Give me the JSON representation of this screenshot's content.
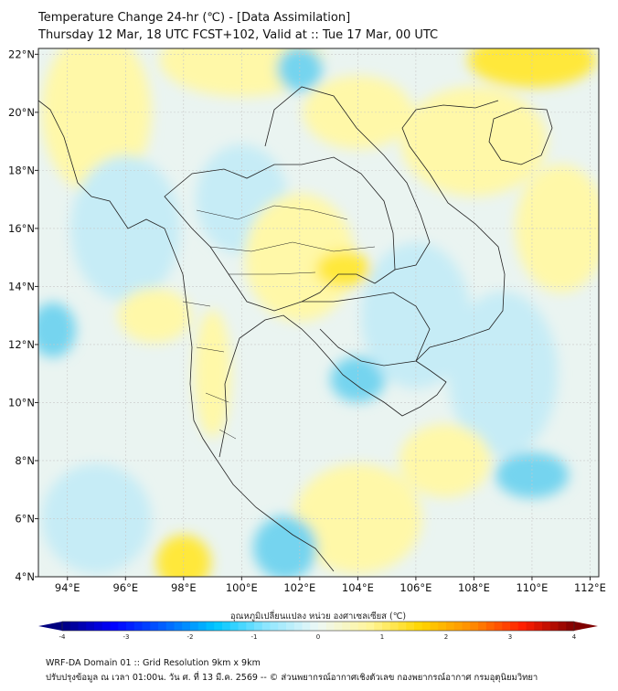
{
  "title_line1": "Temperature Change 24-hr (℃) - [Data Assimilation]",
  "title_line2": "Thursday 12 Mar, 18 UTC FCST+102, Valid at :: Tue 17 Mar, 00 UTC",
  "map": {
    "lon_range": [
      93,
      112.3
    ],
    "lat_range": [
      4,
      22.2
    ],
    "lon_ticks": [
      94,
      96,
      98,
      100,
      102,
      104,
      106,
      108,
      110,
      112
    ],
    "lon_tick_labels": [
      "94°E",
      "96°E",
      "98°E",
      "100°E",
      "102°E",
      "104°E",
      "106°E",
      "108°E",
      "110°E",
      "112°E"
    ],
    "lat_ticks": [
      4,
      6,
      8,
      10,
      12,
      14,
      16,
      18,
      20,
      22
    ],
    "lat_tick_labels": [
      "4°N",
      "6°N",
      "8°N",
      "10°N",
      "12°N",
      "14°N",
      "16°N",
      "18°N",
      "20°N",
      "22°N"
    ],
    "grid": true,
    "field_colors": {
      "background": "#eaf4f1",
      "warm_light": "#fff8a8",
      "warm": "#ffe83a",
      "cool_light": "#c6ecf6",
      "cool": "#74d4ef"
    },
    "border_color": "#222222"
  },
  "colorbar": {
    "caption": "อุณหภูมิเปลี่ยนแปลง หน่วย องศาเซลเซียส (℃)",
    "range": [
      -4,
      4
    ],
    "ticks": [
      -4,
      -3,
      -2,
      -1,
      0,
      1,
      2,
      3,
      4
    ],
    "tick_labels": [
      "-4",
      "-3",
      "-2",
      "-1",
      "0",
      "1",
      "2",
      "3",
      "4"
    ],
    "colors": [
      "#00007f",
      "#0000ff",
      "#0063ff",
      "#00c7ff",
      "#8ee6ff",
      "#eef8f6",
      "#fff59a",
      "#ffd600",
      "#ff8c00",
      "#ff1e00",
      "#7f0000"
    ]
  },
  "footer_line1": "WRF-DA Domain 01 :: Grid Resolution 9km x 9km",
  "footer_line2": "ปรับปรุงข้อมูล ณ เวลา 01:00น. วัน ศ. ที่ 13 มี.ค. 2569 -- © ส่วนพยากรณ์อากาศเชิงตัวเลข กองพยากรณ์อากาศ กรมอุตุนิยมวิทยา"
}
